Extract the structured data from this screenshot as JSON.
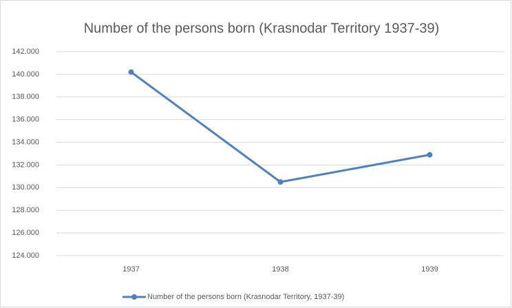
{
  "chart_data": {
    "type": "line",
    "title": "Number of the persons born (Krasnodar Territory 1937-39)",
    "categories": [
      "1937",
      "1938",
      "1939"
    ],
    "series": [
      {
        "name": "Number of the persons born (Krasnodar Territory, 1937-39)",
        "color": "#4f81bd",
        "values": [
          140200,
          130500,
          132900
        ]
      }
    ],
    "ylim": [
      124000,
      142000
    ],
    "yticks": [
      {
        "value": 124000,
        "label": "124.000"
      },
      {
        "value": 126000,
        "label": "126.000"
      },
      {
        "value": 128000,
        "label": "128.000"
      },
      {
        "value": 130000,
        "label": "130.000"
      },
      {
        "value": 132000,
        "label": "132.000"
      },
      {
        "value": 134000,
        "label": "134.000"
      },
      {
        "value": 136000,
        "label": "136.000"
      },
      {
        "value": 138000,
        "label": "138.000"
      },
      {
        "value": 140000,
        "label": "140.000"
      },
      {
        "value": 142000,
        "label": "142.000"
      }
    ],
    "grid": true,
    "legend": "bottom"
  }
}
